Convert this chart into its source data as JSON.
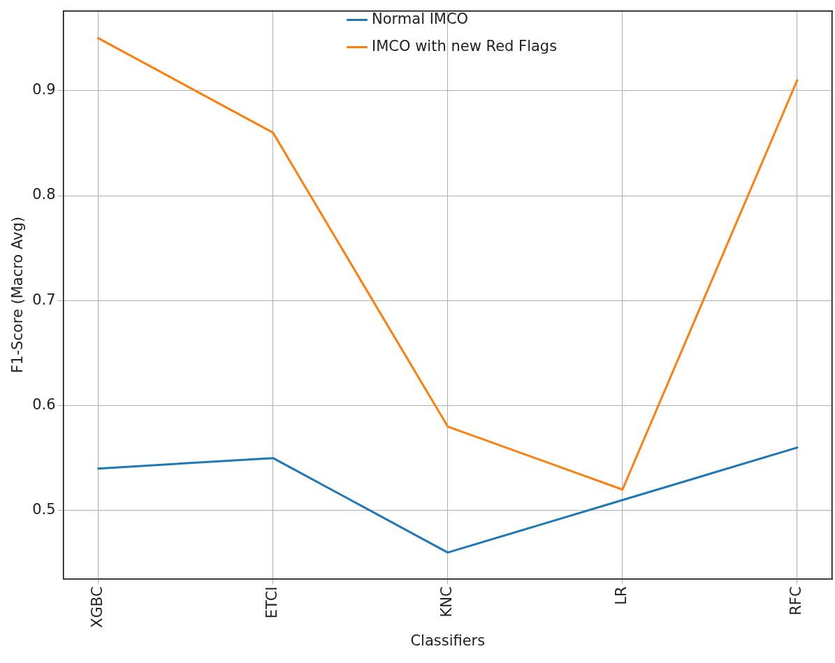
{
  "chart_data": {
    "type": "line",
    "xlabel": "Classifiers",
    "ylabel": "F1-Score (Macro Avg)",
    "categories": [
      "XGBC",
      "ETCI",
      "KNC",
      "LR",
      "RFC"
    ],
    "series": [
      {
        "name": "Normal IMCO",
        "color": "#1f77b4",
        "values": [
          0.54,
          0.55,
          0.46,
          0.51,
          0.56
        ]
      },
      {
        "name": "IMCO with new Red Flags",
        "color": "#ff7f0e",
        "values": [
          0.95,
          0.86,
          0.58,
          0.52,
          0.91
        ]
      }
    ],
    "ylim": [
      0.435,
      0.976
    ],
    "yticks": [
      0.5,
      0.6,
      0.7,
      0.8,
      0.9
    ],
    "grid": true,
    "legend": "top",
    "marker": "none",
    "line_style": "solid"
  }
}
